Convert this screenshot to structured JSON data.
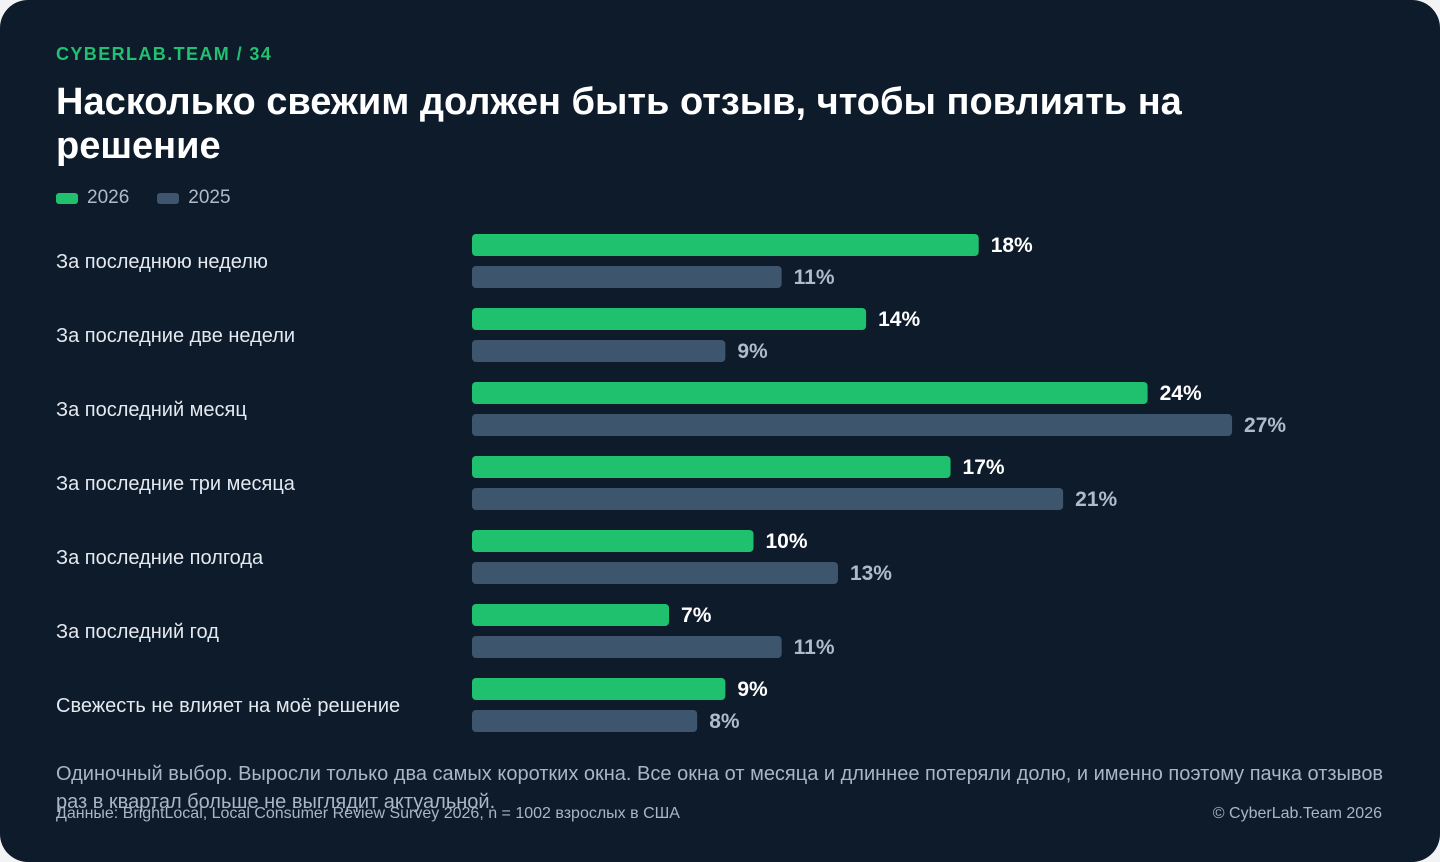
{
  "header": {
    "kicker": "CYBERLAB.TEAM / 34",
    "title": "Насколько свежим должен быть отзыв, чтобы повлиять на решение"
  },
  "colors": {
    "series_2026": "#1fc16f",
    "series_2025": "#3e566d",
    "label_2026": "#ffffff",
    "label_2025": "#aebbca"
  },
  "chart_data": {
    "type": "bar",
    "orientation": "horizontal",
    "title": "Насколько свежим должен быть отзыв, чтобы повлиять на решение",
    "legend_position": "top-left",
    "categories": [
      "За последнюю неделю",
      "За последние две недели",
      "За последний месяц",
      "За последние три месяца",
      "За последние полгода",
      "За последний год",
      "Свежесть не влияет на моё решение"
    ],
    "series": [
      {
        "name": "2026",
        "values": [
          18,
          14,
          24,
          17,
          10,
          7,
          9
        ]
      },
      {
        "name": "2025",
        "values": [
          11,
          9,
          27,
          21,
          13,
          11,
          8
        ]
      }
    ],
    "value_suffix": "%",
    "xlim": [
      0,
      30
    ],
    "grid": false
  },
  "footer": {
    "note": "Одиночный выбор. Выросли только два самых коротких окна. Все окна от месяца и длиннее потеряли долю, и именно поэтому пачка отзывов раз в квартал больше не выглядит актуальной.",
    "source": "Данные: BrightLocal, Local Consumer Review Survey 2026, n = 1002 взрослых в США",
    "copyright": "© CyberLab.Team  2026"
  }
}
